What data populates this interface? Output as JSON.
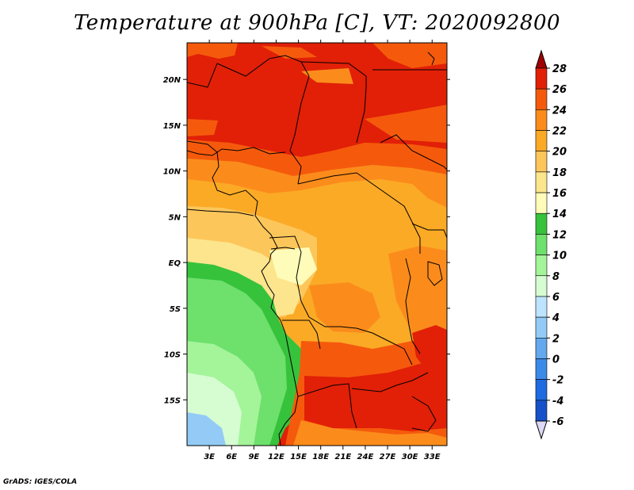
{
  "title": "Temperature at 900hPa [C], VT: 2020092800",
  "credit": "GrADS: IGES/COLA",
  "map": {
    "lon_range": [
      0,
      35
    ],
    "lat_range": [
      -20,
      24
    ],
    "lon_ticks": [
      {
        "value": 3,
        "label": "3E"
      },
      {
        "value": 6,
        "label": "6E"
      },
      {
        "value": 9,
        "label": "9E"
      },
      {
        "value": 12,
        "label": "12E"
      },
      {
        "value": 15,
        "label": "15E"
      },
      {
        "value": 18,
        "label": "18E"
      },
      {
        "value": 21,
        "label": "21E"
      },
      {
        "value": 24,
        "label": "24E"
      },
      {
        "value": 27,
        "label": "27E"
      },
      {
        "value": 30,
        "label": "30E"
      },
      {
        "value": 33,
        "label": "33E"
      }
    ],
    "lat_ticks": [
      {
        "value": 20,
        "label": "20N"
      },
      {
        "value": 15,
        "label": "15N"
      },
      {
        "value": 10,
        "label": "10N"
      },
      {
        "value": 5,
        "label": "5N"
      },
      {
        "value": 0,
        "label": "EQ"
      },
      {
        "value": -5,
        "label": "5S"
      },
      {
        "value": -10,
        "label": "10S"
      },
      {
        "value": -15,
        "label": "15S"
      }
    ]
  },
  "colorbar": {
    "levels": [
      "28",
      "26",
      "24",
      "22",
      "20",
      "18",
      "16",
      "14",
      "12",
      "10",
      "8",
      "6",
      "4",
      "2",
      "0",
      "-2",
      "-4",
      "-6"
    ],
    "colors": [
      "#a00000",
      "#e12007",
      "#f55a0c",
      "#fb8c1c",
      "#fbaa26",
      "#fcc65b",
      "#fde58d",
      "#fefcb8",
      "#37c23c",
      "#6ee06c",
      "#a4f49a",
      "#d6fcd2",
      "#bde3ff",
      "#93cbf6",
      "#64a8ee",
      "#3b8ae8",
      "#1e6ae0",
      "#1651c9",
      "#0d39a8",
      "#061e7a",
      "#dcd8f5"
    ]
  }
}
